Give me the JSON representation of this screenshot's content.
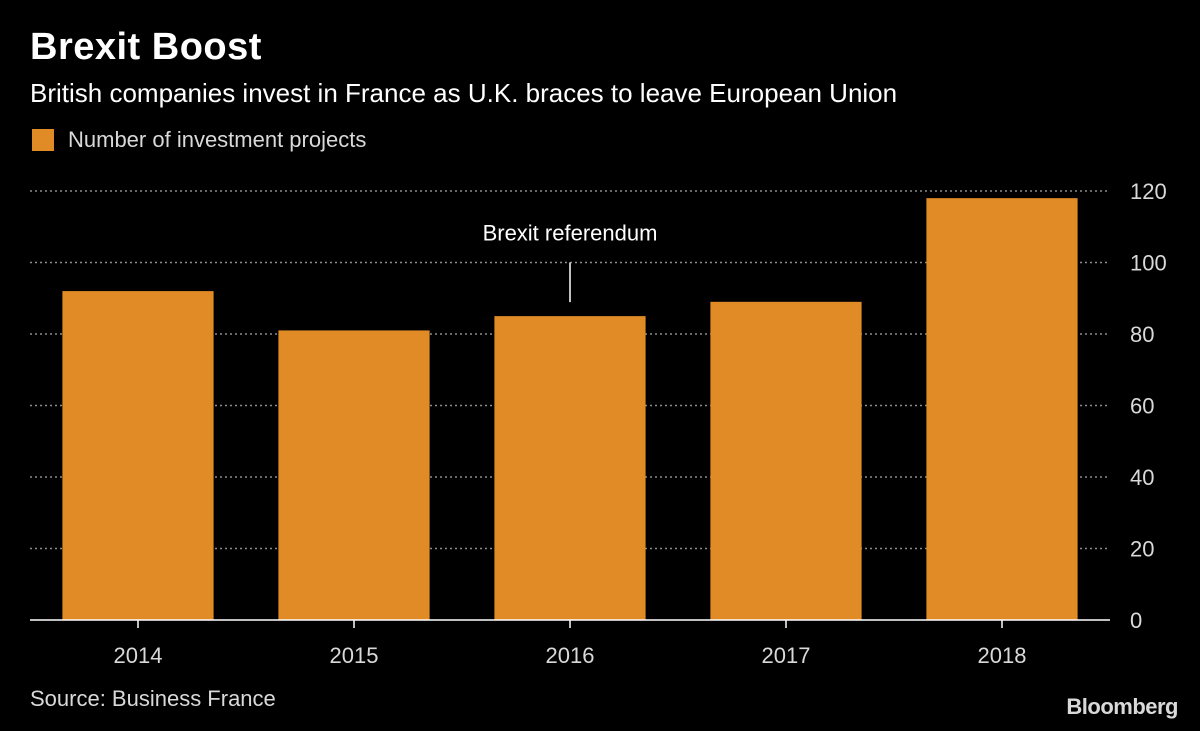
{
  "header": {
    "title": "Brexit Boost",
    "subtitle": "British companies invest in France as U.K. braces to leave European Union"
  },
  "legend": {
    "label": "Number of investment projects",
    "color": "#e08b25"
  },
  "footer": {
    "source": "Source: Business France",
    "logo": "Bloomberg"
  },
  "chart_data": {
    "type": "bar",
    "categories": [
      "2014",
      "2015",
      "2016",
      "2017",
      "2018"
    ],
    "series": [
      {
        "name": "Number of investment projects",
        "values": [
          92,
          81,
          85,
          89,
          118
        ]
      }
    ],
    "ylim": [
      0,
      120
    ],
    "yticks": [
      0,
      20,
      40,
      60,
      80,
      100,
      120
    ],
    "y_axis_side": "right",
    "grid": true,
    "annotations": [
      {
        "text": "Brexit referendum",
        "category": "2016"
      }
    ],
    "colors": {
      "bar": "#e08b25",
      "background": "#000000",
      "grid": "#8c8c8c",
      "text": "#d9d9d9"
    }
  }
}
